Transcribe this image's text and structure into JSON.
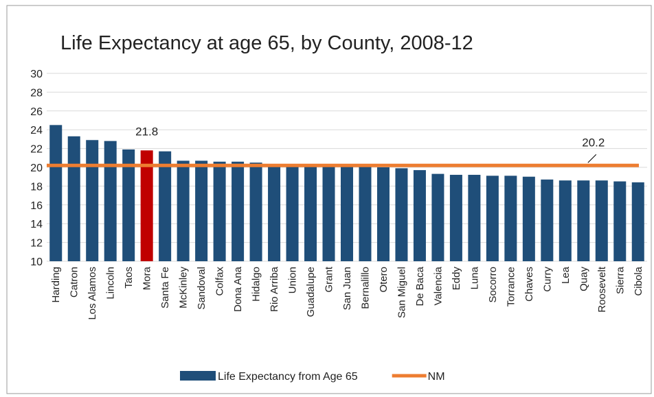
{
  "chart_data": {
    "type": "bar",
    "title": "Life Expectancy at age 65, by County, 2008-12",
    "categories": [
      "Harding",
      "Catron",
      "Los Alamos",
      "Lincoln",
      "Taos",
      "Mora",
      "Santa Fe",
      "McKinley",
      "Sandoval",
      "Colfax",
      "Dona Ana",
      "Hidalgo",
      "Rio Arriba",
      "Union",
      "Guadalupe",
      "Grant",
      "San Juan",
      "Bernalillo",
      "Otero",
      "San Miguel",
      "De Baca",
      "Valencia",
      "Eddy",
      "Luna",
      "Socorro",
      "Torrance",
      "Chaves",
      "Curry",
      "Lea",
      "Quay",
      "Roosevelt",
      "Sierra",
      "Cibola"
    ],
    "series": [
      {
        "name": "Life Expectancy from Age 65",
        "type": "bar",
        "color": "#1f4e79",
        "colors": [
          "#1f4e79",
          "#1f4e79",
          "#1f4e79",
          "#1f4e79",
          "#1f4e79",
          "#c00000",
          "#1f4e79",
          "#1f4e79",
          "#1f4e79",
          "#1f4e79",
          "#1f4e79",
          "#1f4e79",
          "#1f4e79",
          "#1f4e79",
          "#1f4e79",
          "#1f4e79",
          "#1f4e79",
          "#1f4e79",
          "#1f4e79",
          "#1f4e79",
          "#1f4e79",
          "#1f4e79",
          "#1f4e79",
          "#1f4e79",
          "#1f4e79",
          "#1f4e79",
          "#1f4e79",
          "#1f4e79",
          "#1f4e79",
          "#1f4e79",
          "#1f4e79",
          "#1f4e79",
          "#1f4e79"
        ],
        "values": [
          24.5,
          23.3,
          22.9,
          22.8,
          21.9,
          21.8,
          21.7,
          20.7,
          20.7,
          20.6,
          20.6,
          20.5,
          20.2,
          20.2,
          20.1,
          20.1,
          20.1,
          20.1,
          20.0,
          19.9,
          19.7,
          19.3,
          19.2,
          19.2,
          19.1,
          19.1,
          19.0,
          18.7,
          18.6,
          18.6,
          18.6,
          18.5,
          18.4
        ],
        "value_labels": [
          null,
          null,
          null,
          null,
          null,
          "21.8",
          null,
          null,
          null,
          null,
          null,
          null,
          null,
          null,
          null,
          null,
          null,
          null,
          null,
          null,
          null,
          null,
          null,
          null,
          null,
          null,
          null,
          null,
          null,
          null,
          null,
          null,
          null
        ]
      },
      {
        "name": "NM",
        "type": "line",
        "color": "#ed7d31",
        "values": [
          20.2,
          20.2,
          20.2,
          20.2,
          20.2,
          20.2,
          20.2,
          20.2,
          20.2,
          20.2,
          20.2,
          20.2,
          20.2,
          20.2,
          20.2,
          20.2,
          20.2,
          20.2,
          20.2,
          20.2,
          20.2,
          20.2,
          20.2,
          20.2,
          20.2,
          20.2,
          20.2,
          20.2,
          20.2,
          20.2,
          20.2,
          20.2,
          20.2
        ],
        "value_labels": [
          null,
          null,
          null,
          null,
          null,
          null,
          null,
          null,
          null,
          null,
          null,
          null,
          null,
          null,
          null,
          null,
          null,
          null,
          null,
          null,
          null,
          null,
          null,
          null,
          null,
          null,
          null,
          null,
          null,
          null,
          "20.2",
          null,
          null
        ]
      }
    ],
    "ylim": [
      10,
      30
    ],
    "yticks": [
      10,
      12,
      14,
      16,
      18,
      20,
      22,
      24,
      26,
      28,
      30
    ],
    "grid": true,
    "legend": "bottom"
  }
}
